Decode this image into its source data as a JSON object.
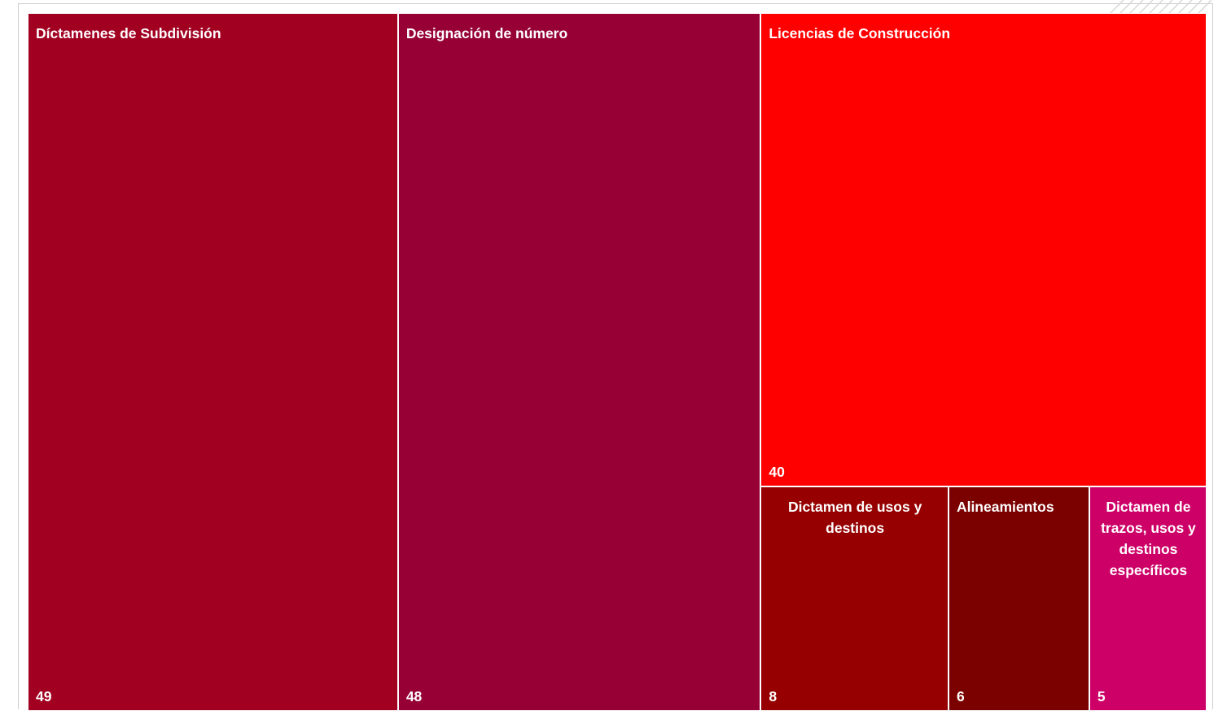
{
  "chart_data": {
    "type": "treemap",
    "items": [
      {
        "label": "Díctamenes de Subdivisión",
        "value": 49,
        "color": "#a10021"
      },
      {
        "label": "Designación de número",
        "value": 48,
        "color": "#960035"
      },
      {
        "label": "Licencias de Construcción",
        "value": 40,
        "color": "#ff0000"
      },
      {
        "label": "Dictamen de usos y destinos",
        "value": 8,
        "color": "#960000"
      },
      {
        "label": "Alineamientos",
        "value": 6,
        "color": "#7b0000"
      },
      {
        "label": "Dictamen de trazos, usos y destinos específicos",
        "value": 5,
        "color": "#cc0066"
      }
    ]
  }
}
